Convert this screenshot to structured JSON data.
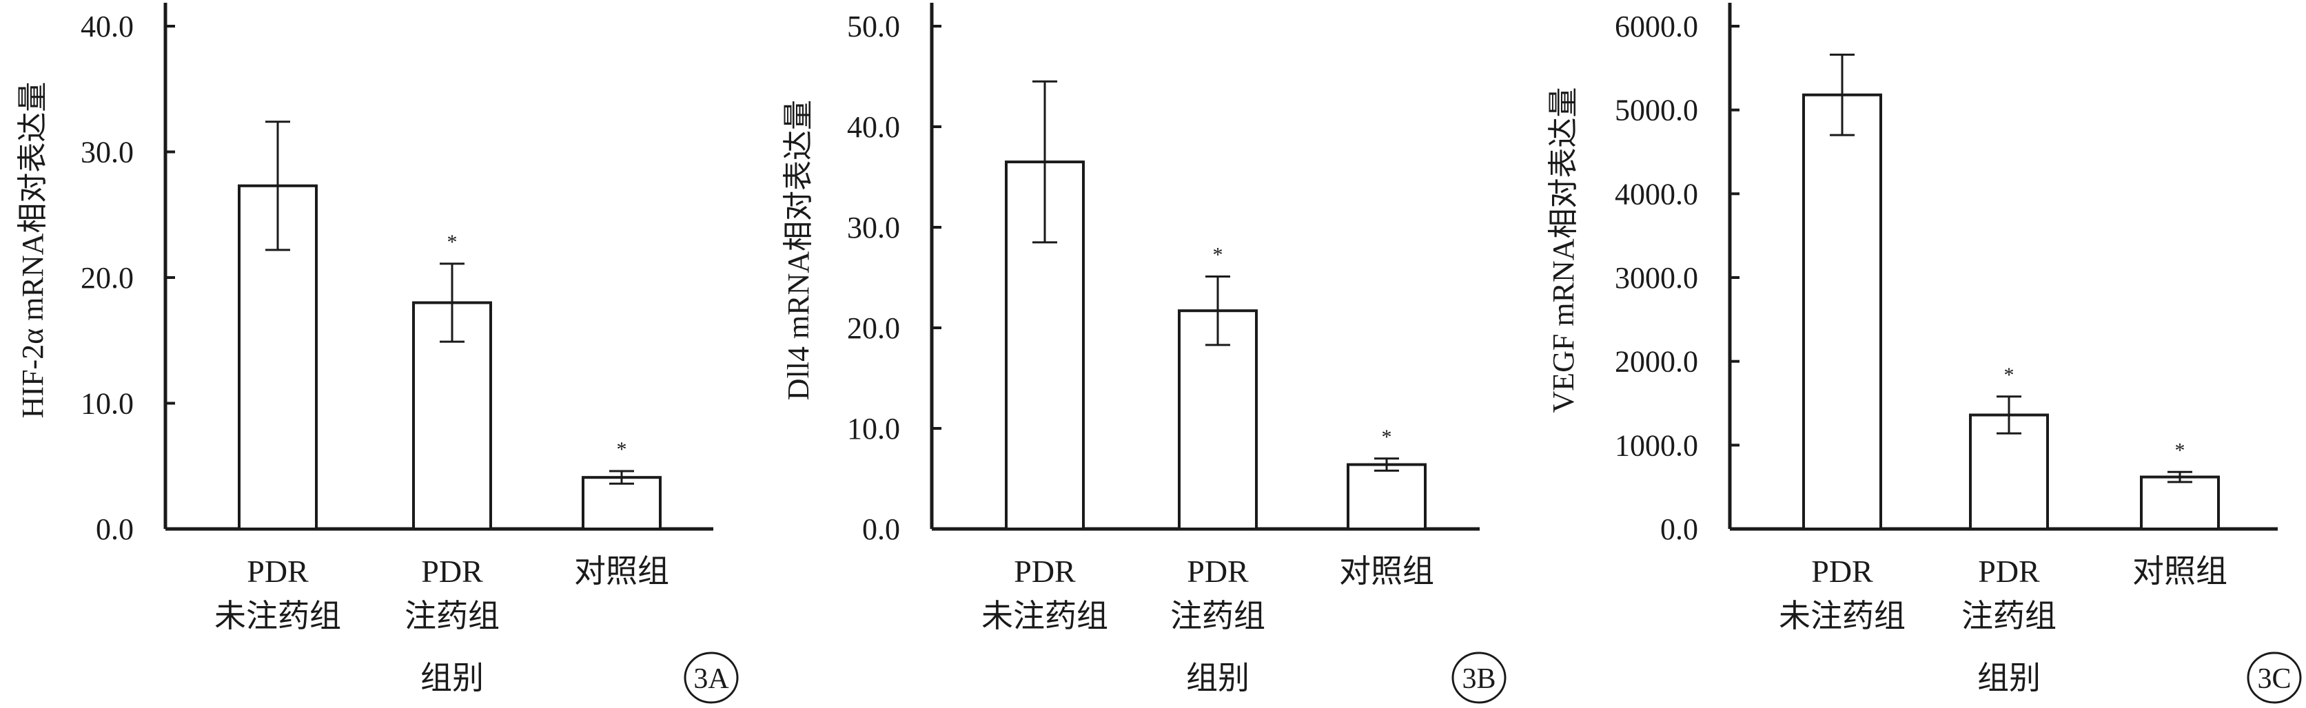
{
  "colors": {
    "axis": "#1a1a1a",
    "bar_fill": "#ffffff",
    "bar_stroke": "#1a1a1a"
  },
  "chart_data": [
    {
      "type": "bar",
      "panel": "3A",
      "ylabel": "HIF-2α mRNA相对表达量",
      "xlabel": "组别",
      "ylim": [
        0,
        40
      ],
      "yticks": [
        0,
        10,
        20,
        30,
        40
      ],
      "ytick_labels": [
        "0.0",
        "10.0",
        "20.0",
        "30.0",
        "40.0"
      ],
      "categories": [
        {
          "line1": "PDR",
          "line2": "未注药组"
        },
        {
          "line1": "PDR",
          "line2": "注药组"
        },
        {
          "line1": "对照组",
          "line2": ""
        }
      ],
      "values": [
        27.3,
        18.0,
        4.1
      ],
      "errors": [
        5.1,
        3.1,
        0.5
      ],
      "significance": [
        "",
        "*",
        "*"
      ]
    },
    {
      "type": "bar",
      "panel": "3B",
      "ylabel": "Dll4 mRNA相对表达量",
      "xlabel": "组别",
      "ylim": [
        0,
        50
      ],
      "yticks": [
        0,
        10,
        20,
        30,
        40,
        50
      ],
      "ytick_labels": [
        "0.0",
        "10.0",
        "20.0",
        "30.0",
        "40.0",
        "50.0"
      ],
      "categories": [
        {
          "line1": "PDR",
          "line2": "未注药组"
        },
        {
          "line1": "PDR",
          "line2": "注药组"
        },
        {
          "line1": "对照组",
          "line2": ""
        }
      ],
      "values": [
        36.5,
        21.7,
        6.4
      ],
      "errors": [
        8.0,
        3.4,
        0.6
      ],
      "significance": [
        "",
        "*",
        "*"
      ]
    },
    {
      "type": "bar",
      "panel": "3C",
      "ylabel": "VEGF mRNA相对表达量",
      "xlabel": "组别",
      "ylim": [
        0,
        6000
      ],
      "yticks": [
        0,
        1000,
        2000,
        3000,
        4000,
        5000,
        6000
      ],
      "ytick_labels": [
        "0.0",
        "1000.0",
        "2000.0",
        "3000.0",
        "4000.0",
        "5000.0",
        "6000.0"
      ],
      "categories": [
        {
          "line1": "PDR",
          "line2": "未注药组"
        },
        {
          "line1": "PDR",
          "line2": "注药组"
        },
        {
          "line1": "对照组",
          "line2": ""
        }
      ],
      "values": [
        5180,
        1360,
        620
      ],
      "errors": [
        480,
        220,
        60
      ],
      "significance": [
        "",
        "*",
        "*"
      ]
    }
  ]
}
